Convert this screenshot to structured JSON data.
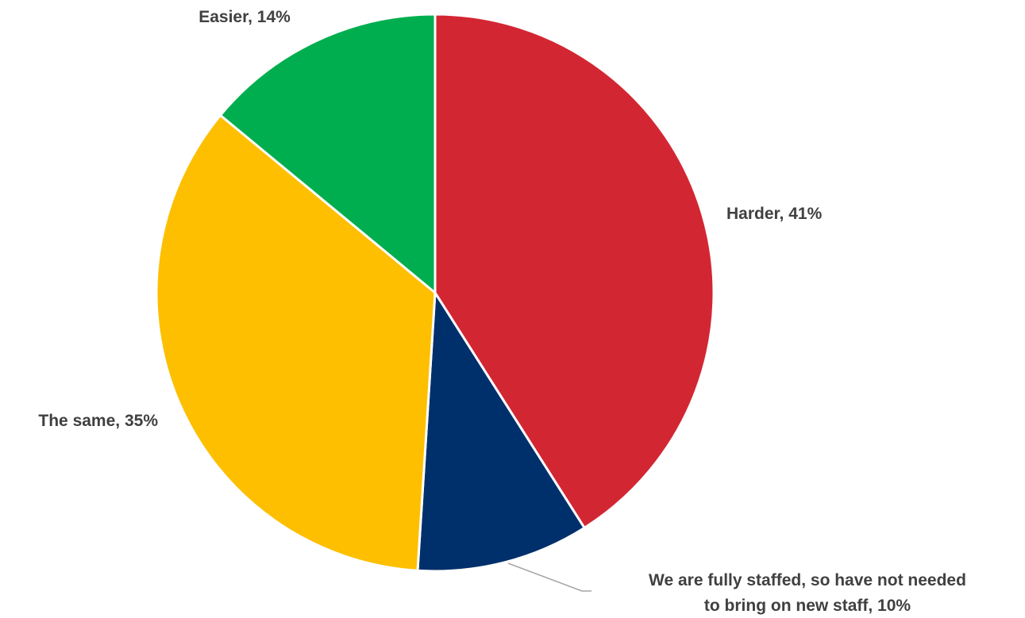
{
  "chart_data": {
    "type": "pie",
    "title": "",
    "start_angle_deg": 0,
    "direction": "clockwise",
    "slices": [
      {
        "label": "Harder",
        "value": 41,
        "value_label": "Harder, 41%",
        "color": "#d32633"
      },
      {
        "label": "We are fully staffed, so have not needed to bring on new staff",
        "value": 10,
        "value_label_lines": [
          "We are fully staffed, so have not needed",
          "to bring on new staff, 10%"
        ],
        "color": "#00306b"
      },
      {
        "label": "The same",
        "value": 35,
        "value_label": "The same, 35%",
        "color": "#fdbf00"
      },
      {
        "label": "Easier",
        "value": 14,
        "value_label": "Easier, 14%",
        "color": "#00ae4f"
      }
    ],
    "legend": "none",
    "data_labels": "outside"
  }
}
